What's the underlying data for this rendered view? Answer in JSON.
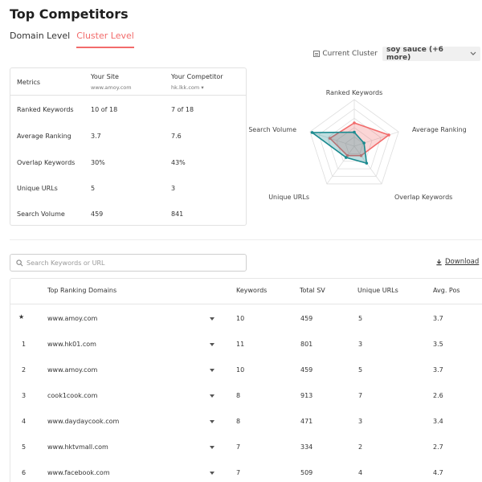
{
  "header": {
    "title": "Top Competitors"
  },
  "tabs": [
    {
      "label": "Domain Level",
      "active": false
    },
    {
      "label": "Cluster Level",
      "active": true
    }
  ],
  "cluster": {
    "label": "Current Cluster",
    "selected": "soy sauce (+6 more)"
  },
  "metrics": {
    "headers": {
      "metric": "Metrics",
      "your_site": "Your Site",
      "your_site_domain": "www.amoy.com",
      "competitor": "Your Competitor",
      "competitor_domain": "hk.lkk.com"
    },
    "rows": [
      {
        "metric": "Ranked Keywords",
        "site": "10 of 18",
        "competitor": "7 of 18"
      },
      {
        "metric": "Average Ranking",
        "site": "3.7",
        "competitor": "7.6"
      },
      {
        "metric": "Overlap Keywords",
        "site": "30%",
        "competitor": "43%"
      },
      {
        "metric": "Unique URLs",
        "site": "5",
        "competitor": "3"
      },
      {
        "metric": "Search Volume",
        "site": "459",
        "competitor": "841"
      }
    ]
  },
  "radar": {
    "axes": [
      "Ranked Keywords",
      "Average Ranking",
      "Overlap Keywords",
      "Unique URLs",
      "Search Volume"
    ],
    "colors": {
      "site": "#1a8a8f",
      "competitor": "#f26b6b"
    },
    "site_values": [
      0.3,
      0.22,
      0.45,
      0.3,
      0.95
    ],
    "competitor_values": [
      0.5,
      0.78,
      0.25,
      0.25,
      0.55
    ]
  },
  "search": {
    "placeholder": "Search Keywords or URL"
  },
  "download": {
    "label": "Download"
  },
  "table": {
    "columns": {
      "domains": "Top Ranking Domains",
      "keywords": "Keywords",
      "total_sv": "Total SV",
      "unique_urls": "Unique URLs",
      "avg_pos": "Avg. Pos"
    },
    "rows": [
      {
        "rank": "★",
        "domain": "www.amoy.com",
        "keywords": "10",
        "total_sv": "459",
        "unique_urls": "5",
        "avg_pos": "3.7"
      },
      {
        "rank": "1",
        "domain": "www.hk01.com",
        "keywords": "11",
        "total_sv": "801",
        "unique_urls": "3",
        "avg_pos": "3.5"
      },
      {
        "rank": "2",
        "domain": "www.amoy.com",
        "keywords": "10",
        "total_sv": "459",
        "unique_urls": "5",
        "avg_pos": "3.7"
      },
      {
        "rank": "3",
        "domain": "cook1cook.com",
        "keywords": "8",
        "total_sv": "913",
        "unique_urls": "7",
        "avg_pos": "2.6"
      },
      {
        "rank": "4",
        "domain": "www.daydaycook.com",
        "keywords": "8",
        "total_sv": "471",
        "unique_urls": "3",
        "avg_pos": "3.4"
      },
      {
        "rank": "5",
        "domain": "www.hktvmall.com",
        "keywords": "7",
        "total_sv": "334",
        "unique_urls": "2",
        "avg_pos": "2.7"
      },
      {
        "rank": "6",
        "domain": "www.facebook.com",
        "keywords": "7",
        "total_sv": "509",
        "unique_urls": "4",
        "avg_pos": "4.7"
      }
    ]
  }
}
